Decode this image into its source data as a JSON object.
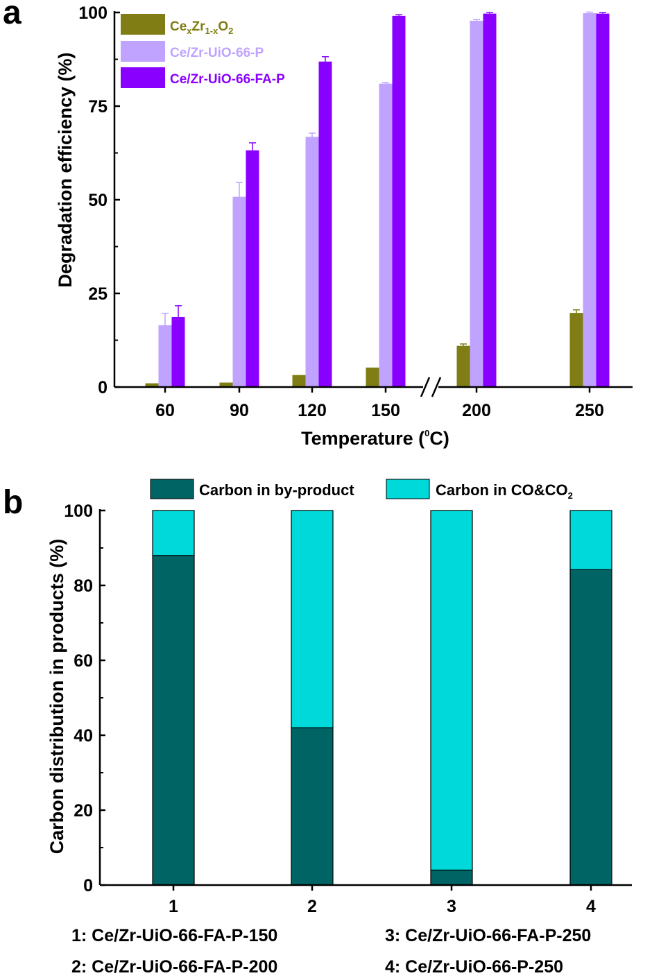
{
  "panels": {
    "a": {
      "letter": "a"
    },
    "b": {
      "letter": "b"
    }
  },
  "colors": {
    "cexzr": "#7f7d13",
    "uio_p": "#bfa3ff",
    "uio_fa_p": "#8a00ff",
    "byproduct": "#006464",
    "co_co2": "#00d9d9",
    "axis": "#000000"
  },
  "chart_data": [
    {
      "type": "bar",
      "panel": "a",
      "categories": [
        "60",
        "90",
        "120",
        "150",
        "200",
        "250"
      ],
      "axis_break_between": [
        "150",
        "200"
      ],
      "series": [
        {
          "name_parts": [
            "Ce",
            "x",
            "Zr",
            "1-x",
            "O",
            "2"
          ],
          "name": "CexZr1-xO2",
          "color": "#7f7d13",
          "values": [
            1,
            1.2,
            3.2,
            5.2,
            11,
            19.8
          ],
          "errors": [
            0,
            0,
            0,
            0,
            0.5,
            0.8
          ]
        },
        {
          "name": "Ce/Zr-UiO-66-P",
          "color": "#bfa3ff",
          "values": [
            16.5,
            50.8,
            66.8,
            81,
            97.8,
            99.8
          ],
          "errors": [
            3.2,
            3.8,
            1,
            0.3,
            0.3,
            0.3
          ]
        },
        {
          "name": "Ce/Zr-UiO-66-FA-P",
          "color": "#8a00ff",
          "values": [
            18.7,
            63.2,
            86.9,
            99.1,
            99.7,
            99.7
          ],
          "errors": [
            3,
            2,
            1.3,
            0.3,
            0.3,
            0.3
          ]
        }
      ],
      "xlabel_parts": [
        "Temperature (",
        "0",
        "C)"
      ],
      "xlabel": "Temperature (0C)",
      "ylabel": "Degradation efficiency (%)",
      "ylim": [
        0,
        100
      ],
      "yticks": [
        0,
        25,
        50,
        75,
        100
      ],
      "legend_position": "top-left",
      "grid": false
    },
    {
      "type": "bar",
      "stacked": true,
      "panel": "b",
      "categories": [
        "1",
        "2",
        "3",
        "4"
      ],
      "series": [
        {
          "name": "Carbon in by-product",
          "color": "#006464",
          "values": [
            88,
            42,
            4,
            84.2
          ]
        },
        {
          "name_parts": [
            "Carbon in CO&CO",
            "2"
          ],
          "name": "Carbon in CO&CO2",
          "color": "#00d9d9",
          "values": [
            12,
            58,
            96,
            15.8
          ]
        }
      ],
      "ylabel": "Carbon distribution in products (%)",
      "ylim": [
        0,
        100
      ],
      "yticks": [
        0,
        20,
        40,
        60,
        80,
        100
      ],
      "legend_position": "top",
      "grid": false,
      "captions": [
        "1: Ce/Zr-UiO-66-FA-P-150",
        "2: Ce/Zr-UiO-66-FA-P-200",
        "3: Ce/Zr-UiO-66-FA-P-250",
        "4: Ce/Zr-UiO-66-P-250"
      ]
    }
  ]
}
